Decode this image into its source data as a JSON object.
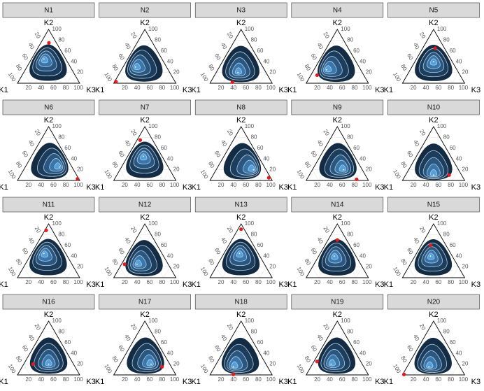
{
  "chart_data": {
    "type": "ternary",
    "axis_labels": {
      "k1": "K1",
      "k2": "K2",
      "k3": "K3"
    },
    "ticks": [
      20,
      40,
      60,
      80,
      100
    ],
    "point_color": "#e31a1c",
    "contour_colors": [
      "#132b43",
      "#1c3d5c",
      "#295780",
      "#3976ab",
      "#55a0d9"
    ],
    "grid": true,
    "panels": [
      {
        "title": "N1",
        "point": [
          12,
          75,
          13
        ],
        "mode": [
          35,
          45,
          20
        ]
      },
      {
        "title": "N2",
        "point": [
          95,
          3,
          2
        ],
        "mode": [
          50,
          30,
          20
        ]
      },
      {
        "title": "N3",
        "point": [
          63,
          2,
          35
        ],
        "mode": [
          45,
          20,
          35
        ]
      },
      {
        "title": "N4",
        "point": [
          75,
          15,
          10
        ],
        "mode": [
          55,
          25,
          20
        ]
      },
      {
        "title": "N5",
        "point": [
          15,
          65,
          20
        ],
        "mode": [
          30,
          40,
          30
        ]
      },
      {
        "title": "N6",
        "point": [
          2,
          3,
          95
        ],
        "mode": [
          20,
          25,
          55
        ]
      },
      {
        "title": "N7",
        "point": [
          20,
          75,
          5
        ],
        "mode": [
          30,
          45,
          25
        ]
      },
      {
        "title": "N8",
        "point": [
          3,
          5,
          92
        ],
        "mode": [
          20,
          20,
          60
        ]
      },
      {
        "title": "N9",
        "point": [
          18,
          2,
          80
        ],
        "mode": [
          30,
          20,
          50
        ]
      },
      {
        "title": "N10",
        "point": [
          20,
          10,
          70
        ],
        "mode": [
          45,
          10,
          45
        ]
      },
      {
        "title": "N11",
        "point": [
          10,
          88,
          2
        ],
        "mode": [
          35,
          45,
          20
        ]
      },
      {
        "title": "N12",
        "point": [
          70,
          25,
          5
        ],
        "mode": [
          50,
          25,
          25
        ]
      },
      {
        "title": "N13",
        "point": [
          5,
          90,
          5
        ],
        "mode": [
          30,
          45,
          25
        ]
      },
      {
        "title": "N14",
        "point": [
          15,
          70,
          15
        ],
        "mode": [
          35,
          40,
          25
        ]
      },
      {
        "title": "N15",
        "point": [
          25,
          60,
          15
        ],
        "mode": [
          35,
          40,
          25
        ]
      },
      {
        "title": "N16",
        "point": [
          65,
          20,
          15
        ],
        "mode": [
          40,
          20,
          40
        ]
      },
      {
        "title": "N17",
        "point": [
          15,
          15,
          70
        ],
        "mode": [
          30,
          20,
          50
        ]
      },
      {
        "title": "N18",
        "point": [
          62,
          1,
          37
        ],
        "mode": [
          55,
          15,
          30
        ]
      },
      {
        "title": "N19",
        "point": [
          70,
          25,
          5
        ],
        "mode": [
          50,
          20,
          30
        ]
      },
      {
        "title": "N20",
        "point": [
          97,
          1,
          2
        ],
        "mode": [
          50,
          15,
          35
        ]
      }
    ]
  }
}
